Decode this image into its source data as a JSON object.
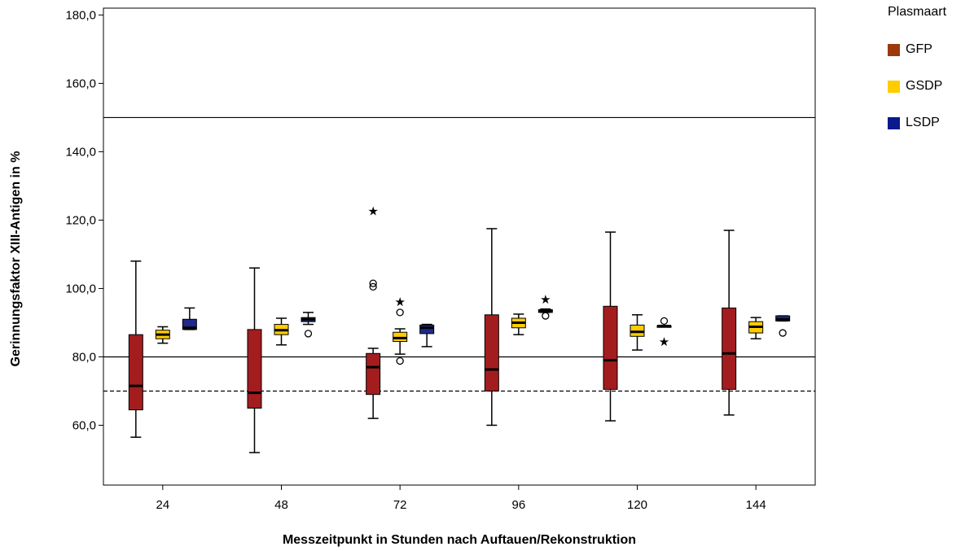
{
  "chart_data": {
    "type": "boxplot",
    "xlabel": "Messzeitpunkt in Stunden nach Auftauen/Rekonstruktion",
    "ylabel": "Gerinnungsfaktor XIII-Antigen in %",
    "ylim": [
      42.5,
      182.0
    ],
    "yticks": [
      "60,0",
      "80,0",
      "100,0",
      "120,0",
      "140,0",
      "160,0",
      "180,0"
    ],
    "ytick_values": [
      60,
      80,
      100,
      120,
      140,
      160,
      180
    ],
    "categories": [
      "24",
      "48",
      "72",
      "96",
      "120",
      "144"
    ],
    "grid": false,
    "legend_title": "Plasmaart",
    "legend_position": "top-right",
    "reference_lines": [
      {
        "y": 150,
        "style": "solid"
      },
      {
        "y": 80,
        "style": "solid"
      },
      {
        "y": 70,
        "style": "dashed"
      }
    ],
    "series": [
      {
        "name": "GFP",
        "legend_color": "#9c3a0e",
        "box_color": "#a31d1f",
        "boxes": [
          {
            "whisker_low": 56.5,
            "q1": 64.5,
            "median": 71.5,
            "q3": 86.5,
            "whisker_high": 108.0,
            "outliers": [],
            "extremes": []
          },
          {
            "whisker_low": 52.0,
            "q1": 65.0,
            "median": 69.5,
            "q3": 88.0,
            "whisker_high": 106.0,
            "outliers": [],
            "extremes": []
          },
          {
            "whisker_low": 62.0,
            "q1": 69.0,
            "median": 77.0,
            "q3": 81.0,
            "whisker_high": 82.5,
            "outliers": [
              100.5,
              101.5
            ],
            "extremes": [
              122.8
            ]
          },
          {
            "whisker_low": 60.0,
            "q1": 70.0,
            "median": 76.3,
            "q3": 92.3,
            "whisker_high": 117.5,
            "outliers": [],
            "extremes": []
          },
          {
            "whisker_low": 61.3,
            "q1": 70.5,
            "median": 79.0,
            "q3": 94.8,
            "whisker_high": 116.5,
            "outliers": [],
            "extremes": []
          },
          {
            "whisker_low": 63.0,
            "q1": 70.5,
            "median": 81.0,
            "q3": 94.3,
            "whisker_high": 117.0,
            "outliers": [],
            "extremes": []
          }
        ]
      },
      {
        "name": "GSDP",
        "legend_color": "#ffcc00",
        "box_color": "#ffcc00",
        "boxes": [
          {
            "whisker_low": 84.0,
            "q1": 85.3,
            "median": 86.5,
            "q3": 87.8,
            "whisker_high": 88.8,
            "outliers": [],
            "extremes": []
          },
          {
            "whisker_low": 83.5,
            "q1": 86.5,
            "median": 87.8,
            "q3": 89.5,
            "whisker_high": 91.3,
            "outliers": [],
            "extremes": []
          },
          {
            "whisker_low": 80.8,
            "q1": 84.5,
            "median": 85.5,
            "q3": 87.2,
            "whisker_high": 88.2,
            "outliers": [
              78.8,
              93.0
            ],
            "extremes": [
              96.3
            ]
          },
          {
            "whisker_low": 86.5,
            "q1": 88.5,
            "median": 90.0,
            "q3": 91.3,
            "whisker_high": 92.5,
            "outliers": [],
            "extremes": []
          },
          {
            "whisker_low": 82.0,
            "q1": 86.0,
            "median": 87.3,
            "q3": 89.3,
            "whisker_high": 92.3,
            "outliers": [],
            "extremes": []
          },
          {
            "whisker_low": 85.3,
            "q1": 87.0,
            "median": 88.8,
            "q3": 90.3,
            "whisker_high": 91.5,
            "outliers": [],
            "extremes": []
          }
        ]
      },
      {
        "name": "LSDP",
        "legend_color": "#0a1a8c",
        "box_color": "#1f2a8a",
        "boxes": [
          {
            "whisker_low": 88.0,
            "q1": 88.0,
            "median": 88.5,
            "q3": 91.0,
            "whisker_high": 94.3,
            "outliers": [],
            "extremes": []
          },
          {
            "whisker_low": 89.5,
            "q1": 90.3,
            "median": 91.0,
            "q3": 91.5,
            "whisker_high": 93.0,
            "outliers": [
              86.8
            ],
            "extremes": []
          },
          {
            "whisker_low": 83.0,
            "q1": 86.8,
            "median": 88.5,
            "q3": 89.3,
            "whisker_high": 89.5,
            "outliers": [],
            "extremes": []
          },
          {
            "whisker_low": 93.0,
            "q1": 93.0,
            "median": 93.5,
            "q3": 93.8,
            "whisker_high": 94.0,
            "outliers": [
              92.0
            ],
            "extremes": [
              97.0
            ]
          },
          {
            "whisker_low": 88.8,
            "q1": 88.9,
            "median": 89.0,
            "q3": 89.1,
            "whisker_high": 89.2,
            "outliers": [
              90.5
            ],
            "extremes": [
              84.6
            ]
          },
          {
            "whisker_low": 90.5,
            "q1": 90.5,
            "median": 91.0,
            "q3": 92.0,
            "whisker_high": 92.0,
            "outliers": [
              87.0
            ],
            "extremes": []
          }
        ]
      }
    ]
  }
}
